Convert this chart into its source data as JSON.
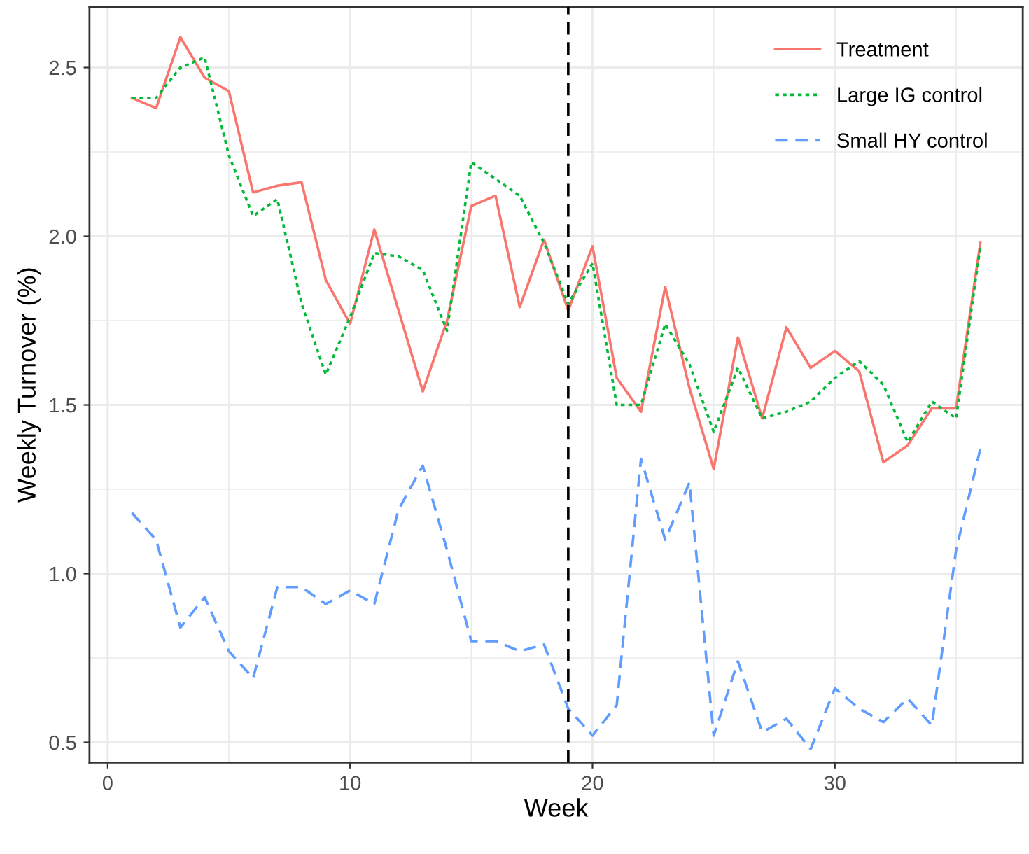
{
  "chart_data": {
    "type": "line",
    "xlabel": "Week",
    "ylabel": "Weekly Turnover (%)",
    "x": [
      1,
      2,
      3,
      4,
      5,
      6,
      7,
      8,
      9,
      10,
      11,
      12,
      13,
      14,
      15,
      16,
      17,
      18,
      19,
      20,
      21,
      22,
      23,
      24,
      25,
      26,
      27,
      28,
      29,
      30,
      31,
      32,
      33,
      34,
      35,
      36
    ],
    "series": [
      {
        "name": "Treatment",
        "color": "#f8766d",
        "line_style": "solid",
        "values": [
          2.41,
          2.38,
          2.59,
          2.47,
          2.43,
          2.13,
          2.15,
          2.16,
          1.87,
          1.74,
          2.02,
          1.78,
          1.54,
          1.75,
          2.09,
          2.12,
          1.79,
          1.99,
          1.78,
          1.97,
          1.58,
          1.48,
          1.85,
          1.55,
          1.31,
          1.7,
          1.46,
          1.73,
          1.61,
          1.66,
          1.6,
          1.33,
          1.38,
          1.49,
          1.49,
          1.98
        ]
      },
      {
        "name": "Large IG control",
        "color": "#00ba38",
        "line_style": "dotted",
        "values": [
          2.41,
          2.41,
          2.5,
          2.53,
          2.24,
          2.06,
          2.11,
          1.8,
          1.59,
          1.76,
          1.95,
          1.94,
          1.9,
          1.72,
          2.22,
          2.17,
          2.12,
          1.98,
          1.8,
          1.92,
          1.5,
          1.5,
          1.74,
          1.62,
          1.42,
          1.61,
          1.46,
          1.48,
          1.51,
          1.58,
          1.63,
          1.56,
          1.39,
          1.51,
          1.46,
          1.97
        ]
      },
      {
        "name": "Small HY control",
        "color": "#619cff",
        "line_style": "dashed",
        "values": [
          1.18,
          1.1,
          0.84,
          0.93,
          0.77,
          0.69,
          0.96,
          0.96,
          0.91,
          0.95,
          0.91,
          1.19,
          1.32,
          1.07,
          0.8,
          0.8,
          0.77,
          0.79,
          0.6,
          0.52,
          0.61,
          1.34,
          1.1,
          1.27,
          0.52,
          0.74,
          0.53,
          0.57,
          0.48,
          0.66,
          0.6,
          0.56,
          0.63,
          0.55,
          1.07,
          1.37
        ]
      }
    ],
    "xlim": [
      -0.75,
      37.75
    ],
    "ylim": [
      0.44,
      2.68
    ],
    "xticks": [
      0,
      10,
      20,
      30
    ],
    "yticks": [
      0.5,
      {
        "value": 1,
        "label": "1.0"
      },
      1.5,
      {
        "value": 2,
        "label": "2.0"
      },
      2.5
    ],
    "ref_lines": [
      {
        "axis": "x",
        "value": 19,
        "color": "#000000",
        "line_style": "dashed"
      }
    ],
    "grid": true,
    "legend": "top right",
    "marker": "none"
  }
}
